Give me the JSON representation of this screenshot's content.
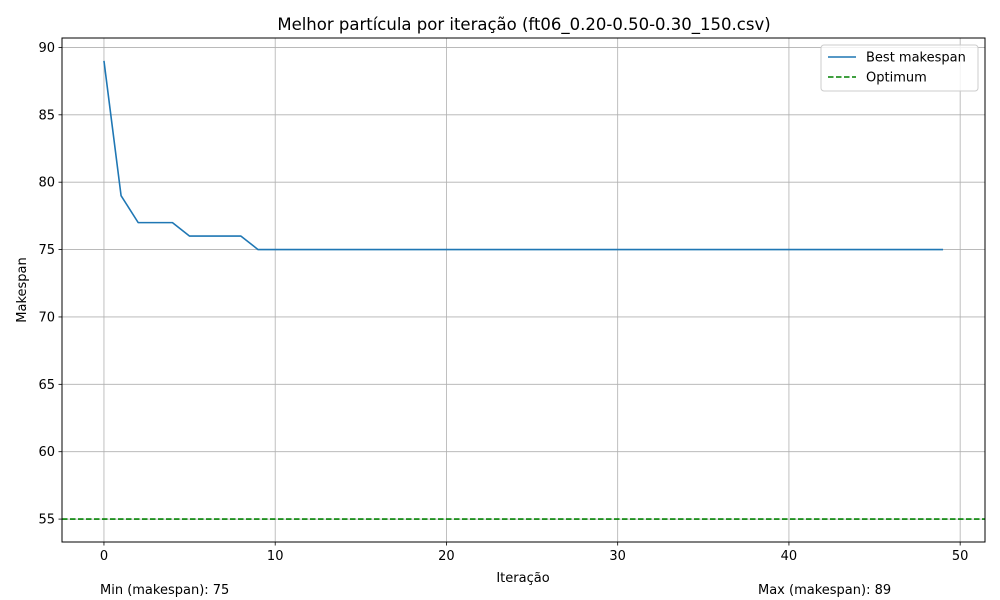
{
  "chart_data": {
    "type": "line",
    "title": "Melhor partícula por iteração (ft06_0.20-0.50-0.30_150.csv)",
    "xlabel": "Iteração",
    "ylabel": "Makespan",
    "xlim": [
      -2.45,
      51.45
    ],
    "ylim": [
      53.3,
      90.7
    ],
    "xticks": [
      0,
      10,
      20,
      30,
      40,
      50
    ],
    "yticks": [
      55,
      60,
      65,
      70,
      75,
      80,
      85,
      90
    ],
    "grid": true,
    "legend_position": "top-right",
    "series": [
      {
        "name": "Best makespan",
        "color": "#1f77b4",
        "style": "solid",
        "x": [
          0,
          1,
          2,
          3,
          4,
          5,
          6,
          7,
          8,
          9,
          10,
          11,
          12,
          13,
          14,
          15,
          16,
          17,
          18,
          19,
          20,
          21,
          22,
          23,
          24,
          25,
          26,
          27,
          28,
          29,
          30,
          31,
          32,
          33,
          34,
          35,
          36,
          37,
          38,
          39,
          40,
          41,
          42,
          43,
          44,
          45,
          46,
          47,
          48,
          49
        ],
        "y": [
          89,
          79,
          77,
          77,
          77,
          76,
          76,
          76,
          76,
          75,
          75,
          75,
          75,
          75,
          75,
          75,
          75,
          75,
          75,
          75,
          75,
          75,
          75,
          75,
          75,
          75,
          75,
          75,
          75,
          75,
          75,
          75,
          75,
          75,
          75,
          75,
          75,
          75,
          75,
          75,
          75,
          75,
          75,
          75,
          75,
          75,
          75,
          75,
          75,
          75
        ]
      },
      {
        "name": "Optimum",
        "color": "#008000",
        "style": "dashed",
        "hline": 55
      }
    ],
    "annotations": {
      "min_text": "Min (makespan): 75",
      "max_text": "Max (makespan): 89"
    }
  }
}
